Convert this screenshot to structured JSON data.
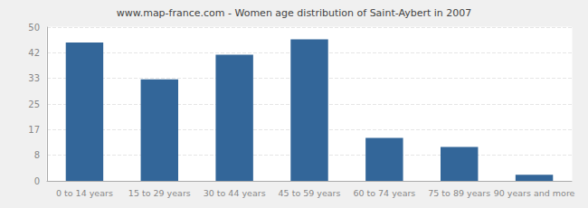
{
  "chart_data": {
    "type": "bar",
    "title": "www.map-france.com - Women age distribution of Saint-Aybert in 2007",
    "categories": [
      "0 to 14 years",
      "15 to 29 years",
      "30 to 44 years",
      "45 to 59 years",
      "60 to 74 years",
      "75 to 89 years",
      "90 years and more"
    ],
    "values": [
      45,
      33,
      41,
      46,
      14,
      11,
      2
    ],
    "color": "#336699",
    "ylim": [
      0,
      50
    ],
    "yticks": [
      0,
      {
        "value": 8.33,
        "label": "8"
      },
      {
        "value": 16.67,
        "label": "17"
      },
      25,
      {
        "value": 33.33,
        "label": "33"
      },
      {
        "value": 41.67,
        "label": "42"
      },
      50
    ],
    "grid": true
  }
}
